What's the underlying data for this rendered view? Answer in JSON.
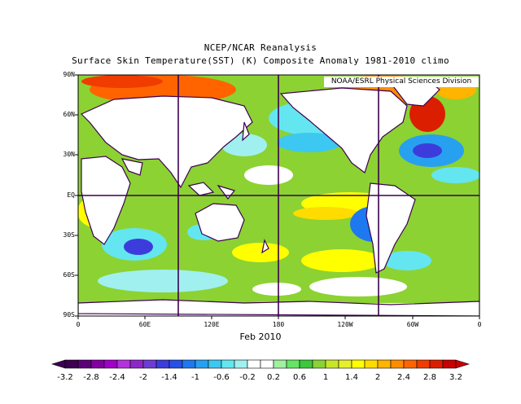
{
  "title": "NCEP/NCAR Reanalysis",
  "subtitle": "Surface Skin Temperature(SST) (K) Composite Anomaly 1981-2010 climo",
  "credit": "NOAA/ESRL Physical Sciences Division",
  "date_label": "Feb 2010",
  "lat_labels": [
    "90N",
    "60N",
    "30N",
    "EQ",
    "30S",
    "60S",
    "90S"
  ],
  "lon_labels": [
    "0",
    "60E",
    "120E",
    "180",
    "120W",
    "60W",
    "0"
  ],
  "colorbar": {
    "labels": [
      "-3.2",
      "-2.8",
      "-2.4",
      "-2",
      "-1.4",
      "-1",
      "-0.6",
      "-0.2",
      "0.2",
      "0.6",
      "1",
      "1.4",
      "2",
      "2.4",
      "2.8",
      "3.2"
    ],
    "colors": [
      "#3c0050",
      "#5a0078",
      "#8200a0",
      "#a000c8",
      "#b432dc",
      "#8c28c8",
      "#6e3cd2",
      "#3c3cdc",
      "#2850e6",
      "#1e78f0",
      "#28a0f0",
      "#3cc8f0",
      "#64e6f0",
      "#a0f0f0",
      "#ffffff",
      "#ffffff",
      "#a0f0a0",
      "#64e664",
      "#3cc83c",
      "#8cd232",
      "#c8e628",
      "#e6f028",
      "#ffff00",
      "#ffdc00",
      "#ffb400",
      "#ff8c00",
      "#ff6400",
      "#f03c00",
      "#dc1e00",
      "#c80000"
    ]
  }
}
